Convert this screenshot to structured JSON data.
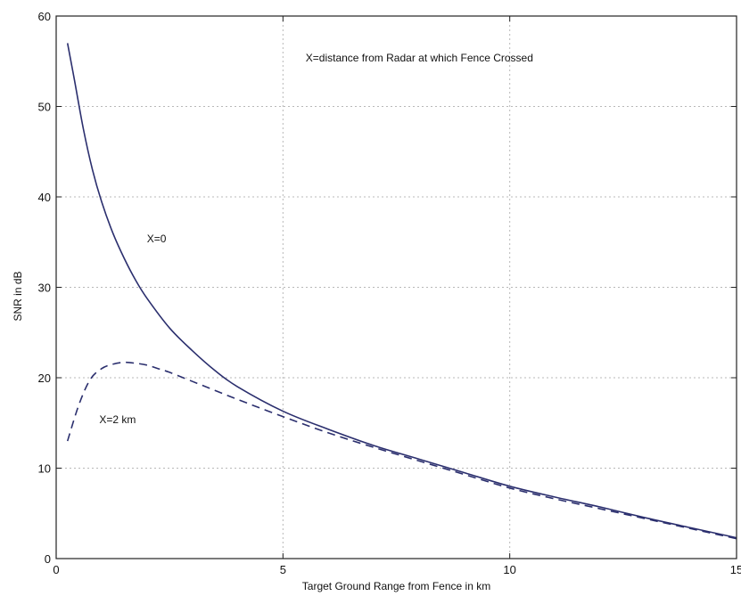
{
  "chart_data": {
    "type": "line",
    "title": "",
    "xlabel": "Target Ground Range from Fence in km",
    "ylabel": "SNR in dB",
    "xlim": [
      0,
      15
    ],
    "ylim": [
      0,
      60
    ],
    "xticks": [
      0,
      5,
      10,
      15
    ],
    "yticks": [
      0,
      10,
      20,
      30,
      40,
      50,
      60
    ],
    "grid": true,
    "annotations": [
      {
        "text": "X=distance from Radar at which Fence Crossed",
        "x": 5.5,
        "y": 55
      },
      {
        "text": "X=0",
        "x": 2.0,
        "y": 35
      },
      {
        "text": "X=2 km",
        "x": 0.95,
        "y": 15
      }
    ],
    "series": [
      {
        "name": "X=0",
        "style": "solid",
        "color": "#2b2f6e",
        "x": [
          0.25,
          0.4,
          0.6,
          0.8,
          1.0,
          1.25,
          1.5,
          1.75,
          2.0,
          2.5,
          3.0,
          3.5,
          4.0,
          5.0,
          6.0,
          7.0,
          8.0,
          9.0,
          10.0,
          11.0,
          12.0,
          13.0,
          14.0,
          15.0
        ],
        "y": [
          57.0,
          53.0,
          47.5,
          43.0,
          39.5,
          36.0,
          33.2,
          30.8,
          28.8,
          25.5,
          23.0,
          20.8,
          19.0,
          16.3,
          14.3,
          12.5,
          11.0,
          9.5,
          8.0,
          6.8,
          5.7,
          4.5,
          3.4,
          2.3
        ]
      },
      {
        "name": "X=2 km",
        "style": "dashed",
        "color": "#2b2f6e",
        "x": [
          0.25,
          0.5,
          0.75,
          1.0,
          1.25,
          1.5,
          1.75,
          2.0,
          2.25,
          2.5,
          3.0,
          3.5,
          4.0,
          5.0,
          6.0,
          7.0,
          8.0,
          9.0,
          10.0,
          11.0,
          12.0,
          13.0,
          14.0,
          15.0
        ],
        "y": [
          13.0,
          17.0,
          19.8,
          21.0,
          21.5,
          21.7,
          21.6,
          21.4,
          21.0,
          20.6,
          19.6,
          18.6,
          17.6,
          15.7,
          13.9,
          12.3,
          10.8,
          9.3,
          7.8,
          6.6,
          5.5,
          4.4,
          3.3,
          2.2
        ]
      }
    ]
  }
}
